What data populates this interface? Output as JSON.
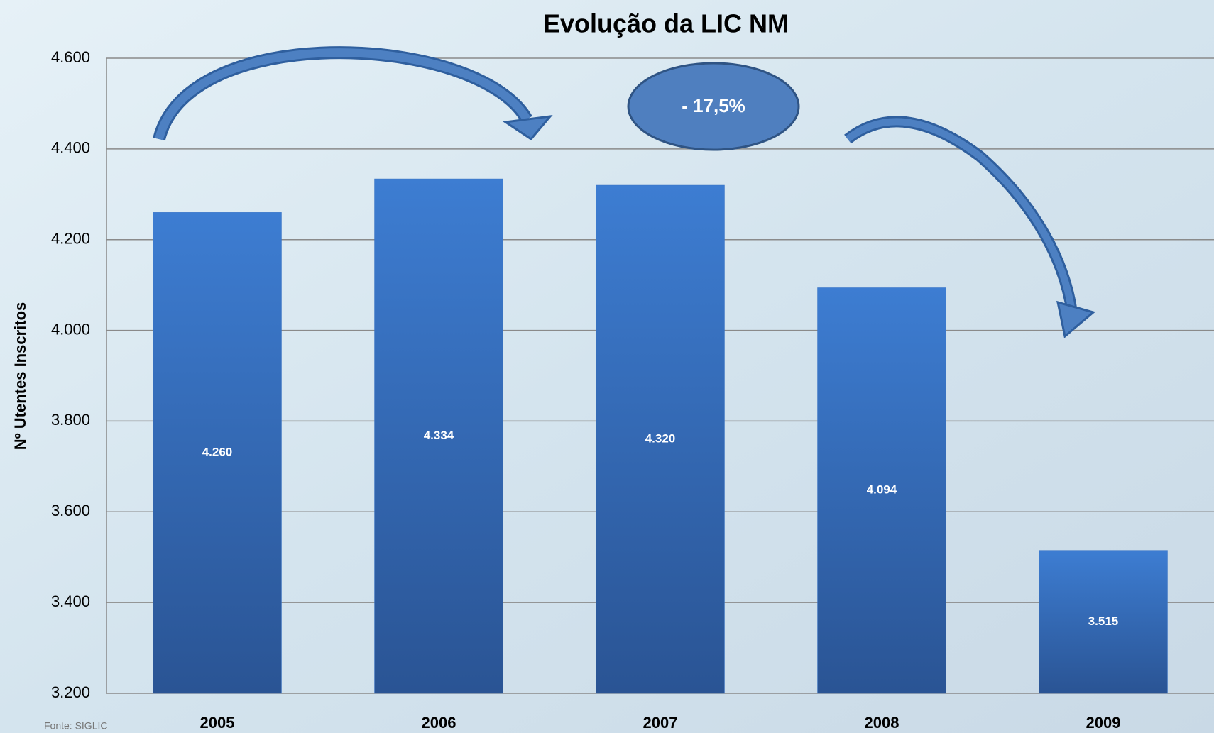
{
  "chart_data": {
    "type": "bar",
    "title": "Evolução da LIC NM",
    "y_label": "Nº Utentes Inscritos",
    "categories": [
      "2005",
      "2006",
      "2007",
      "2008",
      "2009"
    ],
    "values": [
      4260,
      4334,
      4320,
      4094,
      3515
    ],
    "value_labels": [
      "4.260",
      "4.334",
      "4.320",
      "4.094",
      "3.515"
    ],
    "color": "#3a74c4",
    "ylim": [
      3200,
      4600
    ],
    "yticks": [
      {
        "value": 3200,
        "label": "3.200"
      },
      {
        "value": 3400,
        "label": "3.400"
      },
      {
        "value": 3600,
        "label": "3.600"
      },
      {
        "value": 3800,
        "label": "3.800"
      },
      {
        "value": 4000,
        "label": "4.000"
      },
      {
        "value": 4200,
        "label": "4.200"
      },
      {
        "value": 4400,
        "label": "4.400"
      },
      {
        "value": 4600,
        "label": "4.600"
      }
    ],
    "grid": true,
    "annotation": "- 17,5%",
    "source": "Fonte: SIGLIC"
  }
}
